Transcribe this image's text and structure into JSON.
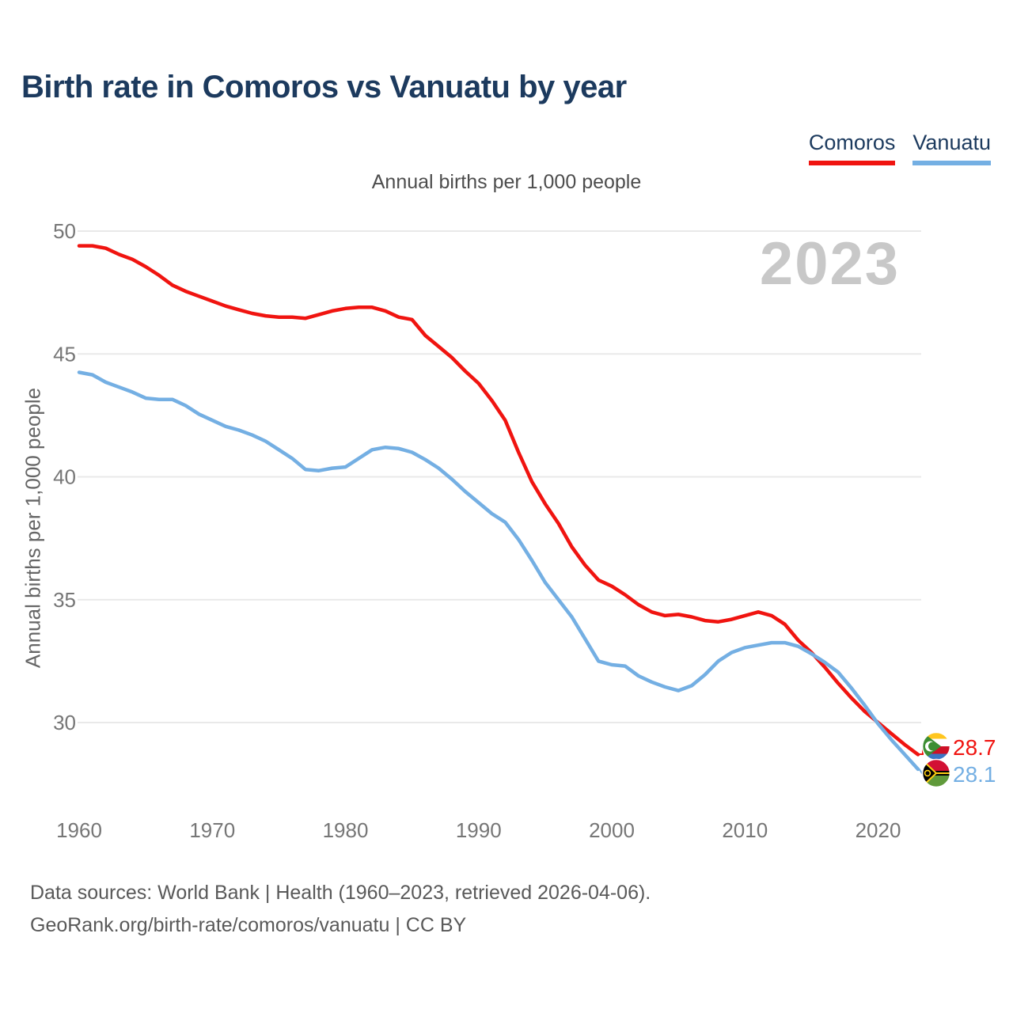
{
  "header": {
    "title": "Birth rate in Comoros vs Vanuatu by year"
  },
  "legend": {
    "items": [
      {
        "label": "Comoros",
        "color": "#f01410"
      },
      {
        "label": "Vanuatu",
        "color": "#74afe3"
      }
    ]
  },
  "chart": {
    "subtitle": "Annual births per 1,000 people",
    "y_axis_title": "Annual births per 1,000 people",
    "watermark": "2023",
    "end_labels": {
      "comoros": "28.7",
      "vanuatu": "28.1"
    }
  },
  "chart_data": {
    "type": "line",
    "title": "Birth rate in Comoros vs Vanuatu by year",
    "subtitle": "Annual births per 1,000 people",
    "ylabel": "Annual births per 1,000 people",
    "xlabel": "",
    "grid": "horizontal",
    "legend_position": "top-right",
    "xlim": [
      1960,
      2023
    ],
    "ylim": [
      27.5,
      50.5
    ],
    "x_ticks": [
      1960,
      1970,
      1980,
      1990,
      2000,
      2010,
      2020
    ],
    "y_ticks": [
      50,
      45,
      40,
      35,
      30
    ],
    "years": [
      1960,
      1961,
      1962,
      1963,
      1964,
      1965,
      1966,
      1967,
      1968,
      1969,
      1970,
      1971,
      1972,
      1973,
      1974,
      1975,
      1976,
      1977,
      1978,
      1979,
      1980,
      1981,
      1982,
      1983,
      1984,
      1985,
      1986,
      1987,
      1988,
      1989,
      1990,
      1991,
      1992,
      1993,
      1994,
      1995,
      1996,
      1997,
      1998,
      1999,
      2000,
      2001,
      2002,
      2003,
      2004,
      2005,
      2006,
      2007,
      2008,
      2009,
      2010,
      2011,
      2012,
      2013,
      2014,
      2015,
      2016,
      2017,
      2018,
      2019,
      2020,
      2021,
      2022,
      2023
    ],
    "series": [
      {
        "name": "Comoros",
        "color": "#f01410",
        "final_value": 28.7,
        "values": [
          49.4,
          49.4,
          49.3,
          49.05,
          48.85,
          48.55,
          48.2,
          47.8,
          47.55,
          47.35,
          47.15,
          46.95,
          46.8,
          46.65,
          46.55,
          46.5,
          46.5,
          46.45,
          46.6,
          46.75,
          46.85,
          46.9,
          46.9,
          46.75,
          46.5,
          46.4,
          45.75,
          45.3,
          44.85,
          44.3,
          43.8,
          43.1,
          42.3,
          41.0,
          39.8,
          38.9,
          38.1,
          37.15,
          36.4,
          35.8,
          35.55,
          35.2,
          34.8,
          34.5,
          34.35,
          34.4,
          34.3,
          34.15,
          34.1,
          34.2,
          34.35,
          34.5,
          34.35,
          34.0,
          33.35,
          32.85,
          32.25,
          31.6,
          31.0,
          30.45,
          30.0,
          29.55,
          29.1,
          28.7
        ]
      },
      {
        "name": "Vanuatu",
        "color": "#74afe3",
        "final_value": 28.1,
        "values": [
          44.25,
          44.15,
          43.85,
          43.65,
          43.45,
          43.2,
          43.15,
          43.15,
          42.9,
          42.55,
          42.3,
          42.05,
          41.9,
          41.7,
          41.45,
          41.1,
          40.75,
          40.3,
          40.25,
          40.35,
          40.4,
          40.75,
          41.1,
          41.2,
          41.15,
          41.0,
          40.7,
          40.35,
          39.9,
          39.4,
          38.95,
          38.5,
          38.15,
          37.45,
          36.6,
          35.7,
          35.0,
          34.3,
          33.4,
          32.5,
          32.35,
          32.3,
          31.9,
          31.65,
          31.45,
          31.3,
          31.5,
          31.95,
          32.5,
          32.85,
          33.05,
          33.15,
          33.25,
          33.25,
          33.1,
          32.8,
          32.45,
          32.05,
          31.4,
          30.7,
          29.95,
          29.3,
          28.7,
          28.1
        ]
      }
    ],
    "axis_text_color": "#767676",
    "gridline_color": "#e9e9e9"
  },
  "footer": {
    "line1": "Data sources: World Bank | Health (1960–2023, retrieved 2026-04-06).",
    "line2": "GeoRank.org/birth-rate/comoros/vanuatu | CC BY"
  }
}
